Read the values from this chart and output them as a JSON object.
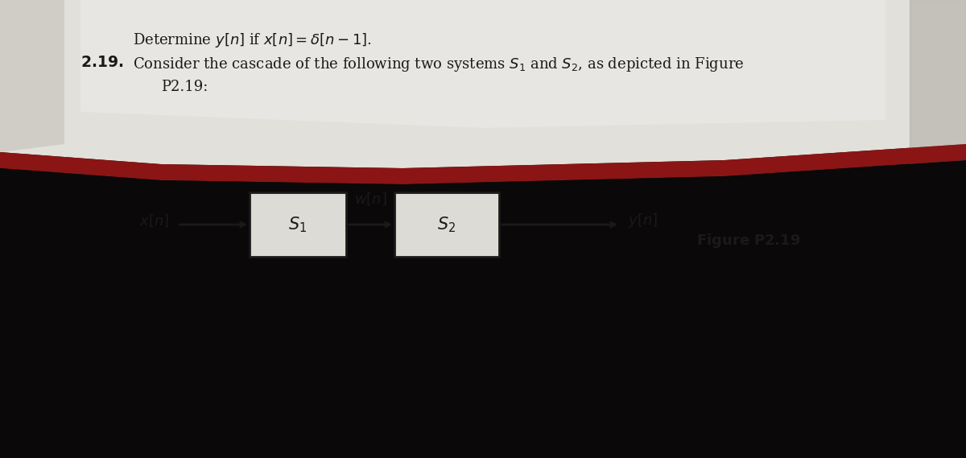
{
  "fig_width": 12.0,
  "fig_height": 5.69,
  "dpi": 100,
  "bg_top_color": "#1a1a1a",
  "page_color": "#e8e8e6",
  "page_shadow_color": "#c8c8c4",
  "red_strip_color": "#8b1a1a",
  "dark_bottom_color": "#0a0a0a",
  "text_color": "#1a1a1a",
  "box_edge_color": "#2a2a2a",
  "box_fill_color": "#d8d8d4",
  "line1": "Determine $y[n]$ if $x[n] = \\delta[n - 1]$.",
  "line2_bold": "2.19.",
  "line2_rest": "  Consider the cascade of the following two systems $S_1$ and $S_2$, as depicted in Figure",
  "line3": "P2.19:",
  "fig_label": "Figure P2.19",
  "s1_label": "$S_1$",
  "s2_label": "$S_2$",
  "xn_label": "$x[n]$",
  "wn_label": "$w[n]$",
  "yn_label": "$y[n]$"
}
